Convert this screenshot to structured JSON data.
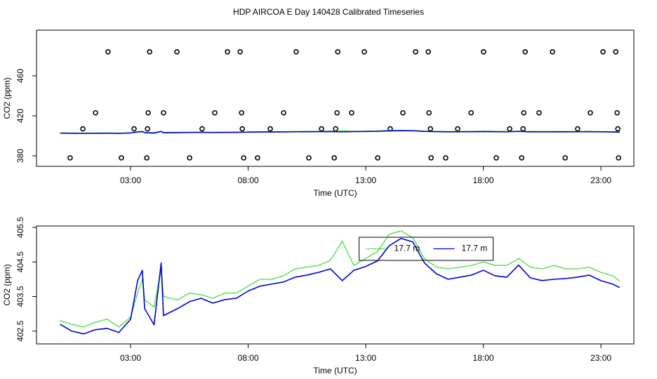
{
  "title": "HDP AIRCOA E  Day 140428  Calibrated Timeseries",
  "chart_data": [
    {
      "type": "line",
      "xlabel": "Time (UTC)",
      "ylabel": "CO2 (ppm)",
      "xlim": [
        -1.0,
        24.4
      ],
      "ylim": [
        369.5,
        505.6
      ],
      "xticks": [
        {
          "value": 3,
          "label": "03:00"
        },
        {
          "value": 8,
          "label": "08:00"
        },
        {
          "value": 13,
          "label": "13:00"
        },
        {
          "value": 18,
          "label": "18:00"
        },
        {
          "value": 23,
          "label": "23:00"
        }
      ],
      "yticks": [
        380,
        420,
        460
      ],
      "series": [
        {
          "type": "scatter",
          "color": "#000000",
          "x": [
            0.43,
            2.61,
            3.69,
            5.51,
            7.81,
            8.4,
            10.58,
            11.66,
            13.51,
            15.78,
            16.4,
            18.55,
            19.63,
            21.48,
            23.75,
            0.97,
            3.15,
            3.72,
            6.04,
            7.75,
            8.94,
            11.12,
            11.72,
            14.04,
            15.75,
            16.91,
            19.12,
            19.69,
            22.01,
            23.72,
            1.51,
            3.75,
            4.4,
            6.58,
            7.72,
            9.51,
            11.78,
            12.4,
            14.58,
            15.69,
            17.48,
            19.72,
            20.37,
            22.55,
            23.69,
            2.04,
            3.81,
            4.97,
            7.12,
            7.66,
            10.04,
            11.81,
            12.94,
            15.12,
            15.66,
            18.01,
            19.78,
            20.94,
            23.09,
            23.63
          ],
          "values": [
            378,
            378,
            378,
            378,
            378,
            378,
            378,
            378,
            378,
            378,
            378,
            378,
            378,
            378,
            378,
            407,
            407,
            407,
            407,
            407,
            407,
            407,
            407,
            407,
            407,
            407,
            407,
            407,
            407,
            407,
            423,
            423,
            423,
            423,
            423,
            423,
            423,
            423,
            423,
            423,
            423,
            423,
            423,
            423,
            423,
            484,
            484,
            484,
            484,
            484,
            484,
            484,
            484,
            484,
            484,
            484,
            484,
            484,
            484,
            484
          ]
        },
        {
          "type": "line",
          "color": "#00cc00",
          "line_style": "dotted",
          "x": [
            0,
            0.5,
            1,
            1.5,
            2,
            2.5,
            3,
            3.3,
            3.5,
            3.6,
            4,
            4.3,
            4.4,
            5,
            5.5,
            6,
            6.5,
            7,
            7.5,
            8,
            8.5,
            9,
            9.5,
            10,
            10.5,
            11,
            11.5,
            12,
            12.5,
            13,
            13.5,
            14,
            14.5,
            15,
            15.5,
            16,
            16.5,
            17,
            17.5,
            18,
            18.5,
            19,
            19.5,
            20,
            20.5,
            21,
            21.5,
            22,
            22.5,
            23,
            23.5,
            23.8
          ],
          "values": [
            402.8,
            402.7,
            402.62,
            402.75,
            402.85,
            402.62,
            402.9,
            403.6,
            404.0,
            403.4,
            403.2,
            404.3,
            403.5,
            403.4,
            403.6,
            403.55,
            403.45,
            403.6,
            403.6,
            403.8,
            404.0,
            404.0,
            404.1,
            404.3,
            404.35,
            404.4,
            404.55,
            405.1,
            404.4,
            404.6,
            404.8,
            405.3,
            405.4,
            405.2,
            404.6,
            404.35,
            404.3,
            404.35,
            404.4,
            404.5,
            404.4,
            404.4,
            404.6,
            404.35,
            404.3,
            404.4,
            404.3,
            404.3,
            404.35,
            404.2,
            404.1,
            403.95
          ]
        },
        {
          "type": "line",
          "color": "#0000cc",
          "line_style": "solid",
          "x": [
            0,
            0.5,
            1,
            1.5,
            2,
            2.5,
            3,
            3.3,
            3.5,
            3.6,
            4,
            4.3,
            4.4,
            5,
            5.5,
            6,
            6.5,
            7,
            7.5,
            8,
            8.5,
            9,
            9.5,
            10,
            10.5,
            11,
            11.5,
            12,
            12.5,
            13,
            13.5,
            14,
            14.5,
            15,
            15.5,
            16,
            16.5,
            17,
            17.5,
            18,
            18.5,
            19,
            19.5,
            20,
            20.5,
            21,
            21.5,
            22,
            22.5,
            23,
            23.5,
            23.8
          ],
          "values": [
            402.7,
            402.5,
            402.42,
            402.54,
            402.58,
            402.46,
            402.84,
            403.96,
            404.26,
            403.15,
            402.68,
            404.47,
            402.95,
            403.15,
            403.35,
            403.45,
            403.31,
            403.41,
            403.45,
            403.66,
            403.8,
            403.86,
            403.92,
            404.06,
            404.12,
            404.2,
            404.3,
            403.96,
            404.26,
            404.37,
            404.53,
            404.97,
            405.18,
            405.08,
            404.47,
            404.16,
            404.0,
            404.06,
            404.12,
            404.26,
            404.1,
            404.06,
            404.41,
            404.04,
            403.96,
            404.0,
            404.02,
            404.06,
            404.12,
            403.96,
            403.86,
            403.76
          ]
        }
      ]
    },
    {
      "type": "line",
      "xlabel": "Time (UTC)",
      "ylabel": "CO2 (ppm)",
      "legend": "top",
      "xlim": [
        -1.0,
        24.4
      ],
      "ylim": [
        402.13,
        405.54
      ],
      "xticks": [
        {
          "value": 3,
          "label": "03:00"
        },
        {
          "value": 8,
          "label": "08:00"
        },
        {
          "value": 13,
          "label": "13:00"
        },
        {
          "value": 18,
          "label": "18:00"
        },
        {
          "value": 23,
          "label": "23:00"
        }
      ],
      "yticks": [
        402.5,
        403.5,
        404.5,
        405.5
      ],
      "series": [
        {
          "name": "17.7 m",
          "color": "#00cc00",
          "line_style": "dotted",
          "x": [
            0,
            0.5,
            1,
            1.5,
            2,
            2.5,
            3,
            3.3,
            3.5,
            3.6,
            4,
            4.3,
            4.4,
            5,
            5.5,
            6,
            6.5,
            7,
            7.5,
            8,
            8.5,
            9,
            9.5,
            10,
            10.5,
            11,
            11.5,
            12,
            12.5,
            13,
            13.5,
            14,
            14.5,
            15,
            15.5,
            16,
            16.5,
            17,
            17.5,
            18,
            18.5,
            19,
            19.5,
            20,
            20.5,
            21,
            21.5,
            22,
            22.5,
            23,
            23.5,
            23.8
          ],
          "values": [
            402.8,
            402.7,
            402.62,
            402.75,
            402.85,
            402.62,
            402.9,
            403.6,
            404.0,
            403.4,
            403.2,
            404.3,
            403.5,
            403.4,
            403.6,
            403.55,
            403.45,
            403.6,
            403.6,
            403.8,
            404.0,
            404.0,
            404.1,
            404.3,
            404.35,
            404.4,
            404.55,
            405.1,
            404.4,
            404.6,
            404.8,
            405.3,
            405.4,
            405.2,
            404.6,
            404.35,
            404.3,
            404.35,
            404.4,
            404.5,
            404.4,
            404.4,
            404.6,
            404.35,
            404.3,
            404.4,
            404.3,
            404.3,
            404.35,
            404.2,
            404.1,
            403.95
          ]
        },
        {
          "name": "17.7 m",
          "color": "#0000cc",
          "line_style": "solid",
          "x": [
            0,
            0.5,
            1,
            1.5,
            2,
            2.5,
            3,
            3.3,
            3.5,
            3.6,
            4,
            4.3,
            4.4,
            5,
            5.5,
            6,
            6.5,
            7,
            7.5,
            8,
            8.5,
            9,
            9.5,
            10,
            10.5,
            11,
            11.5,
            12,
            12.5,
            13,
            13.5,
            14,
            14.5,
            15,
            15.5,
            16,
            16.5,
            17,
            17.5,
            18,
            18.5,
            19,
            19.5,
            20,
            20.5,
            21,
            21.5,
            22,
            22.5,
            23,
            23.5,
            23.8
          ],
          "values": [
            402.7,
            402.5,
            402.42,
            402.54,
            402.58,
            402.46,
            402.84,
            403.96,
            404.26,
            403.15,
            402.68,
            404.47,
            402.95,
            403.15,
            403.35,
            403.45,
            403.31,
            403.41,
            403.45,
            403.66,
            403.8,
            403.86,
            403.92,
            404.06,
            404.12,
            404.2,
            404.3,
            403.96,
            404.26,
            404.37,
            404.53,
            404.97,
            405.18,
            405.08,
            404.47,
            404.16,
            404.0,
            404.06,
            404.12,
            404.26,
            404.1,
            404.06,
            404.41,
            404.04,
            403.96,
            404.0,
            404.02,
            404.06,
            404.12,
            403.96,
            403.86,
            403.76
          ]
        }
      ]
    }
  ]
}
